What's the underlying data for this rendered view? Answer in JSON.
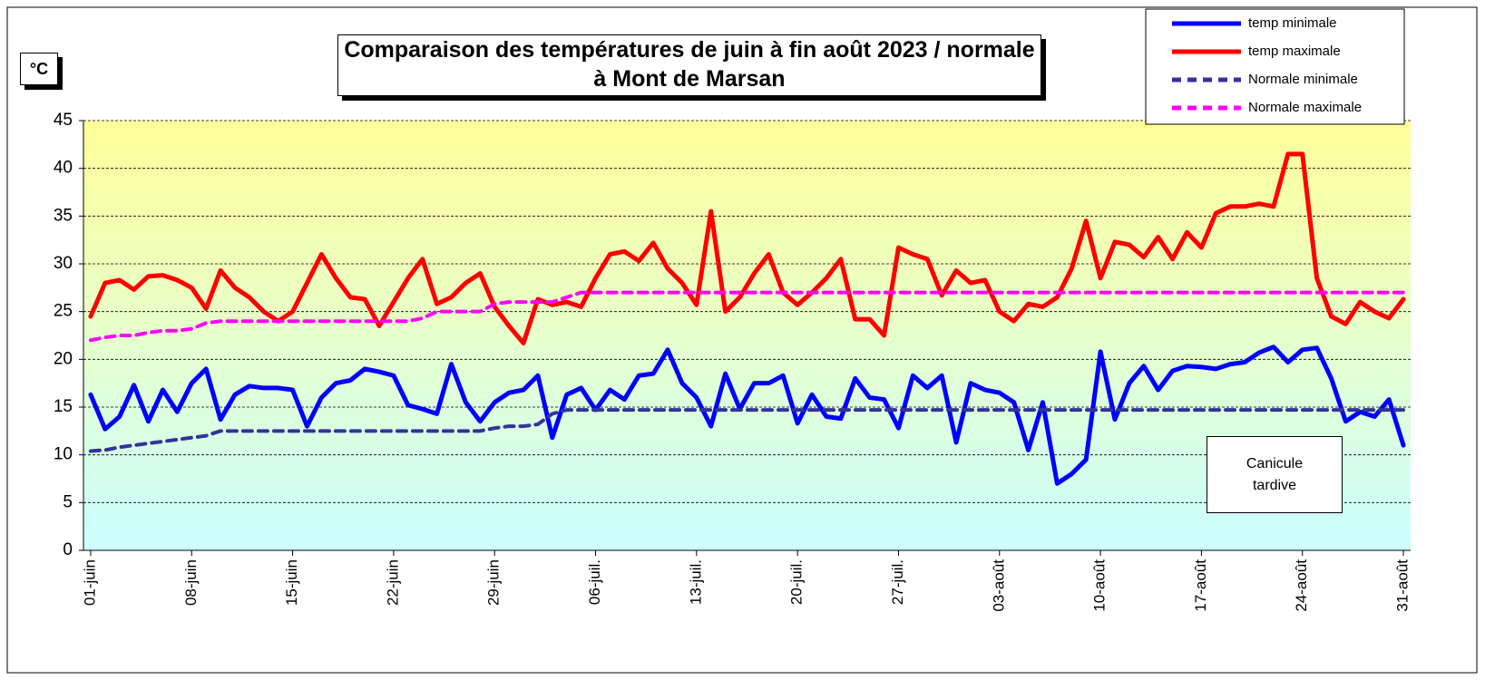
{
  "chart_data": {
    "type": "line",
    "title": "Comparaison des températures de juin à fin août 2023 / normale à Mont de Marsan",
    "y_label": "°C",
    "annotation": "Canicule tardive",
    "categories": [
      "01-juin",
      null,
      null,
      null,
      null,
      null,
      null,
      "08-juin",
      null,
      null,
      null,
      null,
      null,
      null,
      "15-juin",
      null,
      null,
      null,
      null,
      null,
      null,
      "22-juin",
      null,
      null,
      null,
      null,
      null,
      null,
      "29-juin",
      null,
      null,
      null,
      null,
      null,
      null,
      "06-juil.",
      null,
      null,
      null,
      null,
      null,
      null,
      "13-juil.",
      null,
      null,
      null,
      null,
      null,
      null,
      "20-juil.",
      null,
      null,
      null,
      null,
      null,
      null,
      "27-juil.",
      null,
      null,
      null,
      null,
      null,
      null,
      "03-août",
      null,
      null,
      null,
      null,
      null,
      null,
      "10-août",
      null,
      null,
      null,
      null,
      null,
      null,
      "17-août",
      null,
      null,
      null,
      null,
      null,
      null,
      "24-août",
      null,
      null,
      null,
      null,
      null,
      null,
      "31-août"
    ],
    "series": [
      {
        "name": "temp minimale",
        "color": "#0000ff",
        "dash": false,
        "values": [
          16.3,
          12.7,
          14,
          17.3,
          13.5,
          16.8,
          14.5,
          17.5,
          19,
          13.7,
          16.3,
          17.2,
          17,
          17,
          16.8,
          13,
          16,
          17.5,
          17.8,
          19,
          18.7,
          18.3,
          15.2,
          14.8,
          14.3,
          19.5,
          15.5,
          13.5,
          15.5,
          16.5,
          16.8,
          18.3,
          11.8,
          16.3,
          17,
          14.7,
          16.8,
          15.8,
          18.3,
          18.5,
          21,
          17.5,
          16,
          13,
          18.5,
          14.8,
          17.5,
          17.5,
          18.3,
          13.3,
          16.3,
          14,
          13.8,
          18,
          16,
          15.8,
          12.8,
          18.3,
          17,
          18.3,
          11.3,
          17.5,
          16.8,
          16.5,
          15.5,
          10.5,
          15.5,
          7,
          8,
          9.5,
          20.8,
          13.7,
          17.5,
          19.3,
          16.8,
          18.8,
          19.3,
          19.2,
          19,
          19.5,
          19.7,
          20.7,
          21.3,
          19.7,
          21,
          21.2,
          18,
          13.5,
          14.5,
          14,
          15.8,
          11
        ]
      },
      {
        "name": "temp maximale",
        "color": "#ff0000",
        "dash": false,
        "values": [
          24.5,
          28,
          28.3,
          27.3,
          28.7,
          28.8,
          28.3,
          27.5,
          25.3,
          29.3,
          27.5,
          26.5,
          25,
          24,
          25,
          28,
          31,
          28.5,
          26.5,
          26.3,
          23.5,
          26,
          28.5,
          30.5,
          25.8,
          26.5,
          28,
          29,
          25.5,
          23.5,
          21.7,
          26.3,
          25.7,
          26,
          25.5,
          28.5,
          31,
          31.3,
          30.3,
          32.2,
          29.5,
          28,
          25.7,
          35.5,
          25,
          26.5,
          29,
          31,
          27,
          25.7,
          27,
          28.5,
          30.5,
          24.2,
          24.2,
          22.5,
          31.7,
          31,
          30.5,
          26.7,
          29.3,
          28,
          28.3,
          25,
          24,
          25.8,
          25.5,
          26.5,
          29.5,
          34.5,
          28.5,
          32.3,
          32,
          30.7,
          32.8,
          30.5,
          33.3,
          31.7,
          35.3,
          36,
          36,
          36.3,
          36,
          41.5,
          41.5,
          28.5,
          24.5,
          23.7,
          26,
          25,
          24.3,
          26.3
        ]
      },
      {
        "name": "Normale minimale",
        "color": "#333399",
        "dash": true,
        "values": [
          10.4,
          10.5,
          10.8,
          11,
          11.2,
          11.4,
          11.6,
          11.8,
          12,
          12.5,
          12.5,
          12.5,
          12.5,
          12.5,
          12.5,
          12.5,
          12.5,
          12.5,
          12.5,
          12.5,
          12.5,
          12.5,
          12.5,
          12.5,
          12.5,
          12.5,
          12.5,
          12.5,
          12.8,
          13,
          13,
          13.2,
          14.3,
          14.7,
          14.7,
          14.7,
          14.7,
          14.7,
          14.7,
          14.7,
          14.7,
          14.7,
          14.7,
          14.7,
          14.7,
          14.7,
          14.7,
          14.7,
          14.7,
          14.7,
          14.7,
          14.7,
          14.7,
          14.7,
          14.7,
          14.7,
          14.7,
          14.7,
          14.7,
          14.7,
          14.7,
          14.7,
          14.7,
          14.7,
          14.7,
          14.7,
          14.7,
          14.7,
          14.7,
          14.7,
          14.7,
          14.7,
          14.7,
          14.7,
          14.7,
          14.7,
          14.7,
          14.7,
          14.7,
          14.7,
          14.7,
          14.7,
          14.7,
          14.7,
          14.7,
          14.7,
          14.7,
          14.7,
          14.7,
          14.7,
          14.7,
          14.7
        ]
      },
      {
        "name": "Normale maximale",
        "color": "#ff00ff",
        "dash": true,
        "values": [
          22,
          22.3,
          22.5,
          22.5,
          22.8,
          23,
          23,
          23.2,
          23.8,
          24,
          24,
          24,
          24,
          24,
          24,
          24,
          24,
          24,
          24,
          24,
          24,
          24,
          24,
          24.3,
          25,
          25,
          25,
          25,
          25.8,
          26,
          26,
          26,
          26,
          26.5,
          27,
          27,
          27,
          27,
          27,
          27,
          27,
          27,
          27,
          27,
          27,
          27,
          27,
          27,
          27,
          27,
          27,
          27,
          27,
          27,
          27,
          27,
          27,
          27,
          27,
          27,
          27,
          27,
          27,
          27,
          27,
          27,
          27,
          27,
          27,
          27,
          27,
          27,
          27,
          27,
          27,
          27,
          27,
          27,
          27,
          27,
          27,
          27,
          27,
          27,
          27,
          27,
          27,
          27,
          27,
          27,
          27,
          27
        ]
      }
    ],
    "ylim": [
      0,
      45
    ],
    "yticks": [
      0,
      5,
      10,
      15,
      20,
      25,
      30,
      35,
      40,
      45
    ],
    "grid": true
  }
}
